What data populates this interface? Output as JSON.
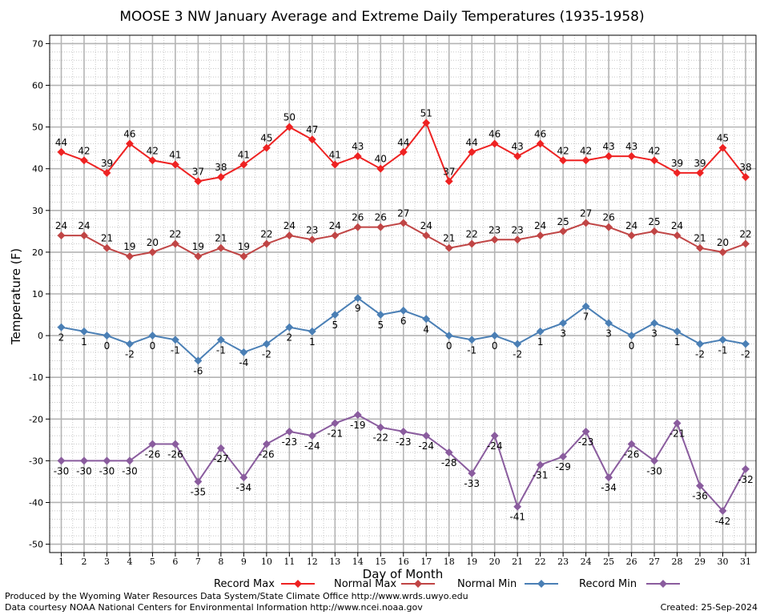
{
  "chart_data": {
    "type": "line",
    "title": "MOOSE 3 NW January Average and Extreme Daily Temperatures (1935-1958)",
    "xlabel": "Day of Month",
    "ylabel": "Temperature (F)",
    "ylim": [
      -52,
      72
    ],
    "yticks": [
      -50,
      -40,
      -30,
      -20,
      -10,
      0,
      10,
      20,
      30,
      40,
      50,
      60,
      70
    ],
    "grid": true,
    "legend_position": "bottom",
    "x": [
      1,
      2,
      3,
      4,
      5,
      6,
      7,
      8,
      9,
      10,
      11,
      12,
      13,
      14,
      15,
      16,
      17,
      18,
      19,
      20,
      21,
      22,
      23,
      24,
      25,
      26,
      27,
      28,
      29,
      30,
      31
    ],
    "series": [
      {
        "name": "Record Max",
        "color": "#ee2222",
        "label_pos": "above",
        "values": [
          44,
          42,
          39,
          46,
          42,
          41,
          37,
          38,
          41,
          45,
          50,
          47,
          41,
          43,
          40,
          44,
          51,
          37,
          44,
          46,
          43,
          46,
          42,
          42,
          43,
          43,
          42,
          39,
          39,
          45,
          38
        ]
      },
      {
        "name": "Normal Max",
        "color": "#c04545",
        "label_pos": "above",
        "values": [
          24,
          24,
          21,
          19,
          20,
          22,
          19,
          21,
          19,
          22,
          24,
          23,
          24,
          26,
          26,
          27,
          24,
          21,
          22,
          23,
          23,
          24,
          25,
          27,
          26,
          24,
          25,
          24,
          21,
          20,
          22
        ]
      },
      {
        "name": "Normal Min",
        "color": "#4a7fb5",
        "label_pos": "below",
        "values": [
          2,
          1,
          0,
          -2,
          0,
          -1,
          -6,
          -1,
          -4,
          -2,
          2,
          1,
          5,
          9,
          5,
          6,
          4,
          0,
          -1,
          0,
          -2,
          1,
          3,
          7,
          3,
          0,
          3,
          1,
          -2,
          -1,
          -2
        ]
      },
      {
        "name": "Record Min",
        "color": "#8a5c9e",
        "label_pos": "below",
        "values": [
          -30,
          -30,
          -30,
          -30,
          -26,
          -26,
          -35,
          -27,
          -34,
          -26,
          -23,
          -24,
          -21,
          -19,
          -22,
          -23,
          -24,
          -28,
          -33,
          -24,
          -41,
          -31,
          -29,
          -23,
          -34,
          -26,
          -30,
          -21,
          -36,
          -42,
          -32
        ]
      }
    ]
  },
  "footer": {
    "produced_by": "Produced by the Wyoming Water Resources Data System/State Climate Office http://www.wrds.uwyo.edu",
    "courtesy": "Data courtesy NOAA National Centers for Environmental Information http://www.ncei.noaa.gov",
    "created": "Created:  25-Sep-2024"
  }
}
